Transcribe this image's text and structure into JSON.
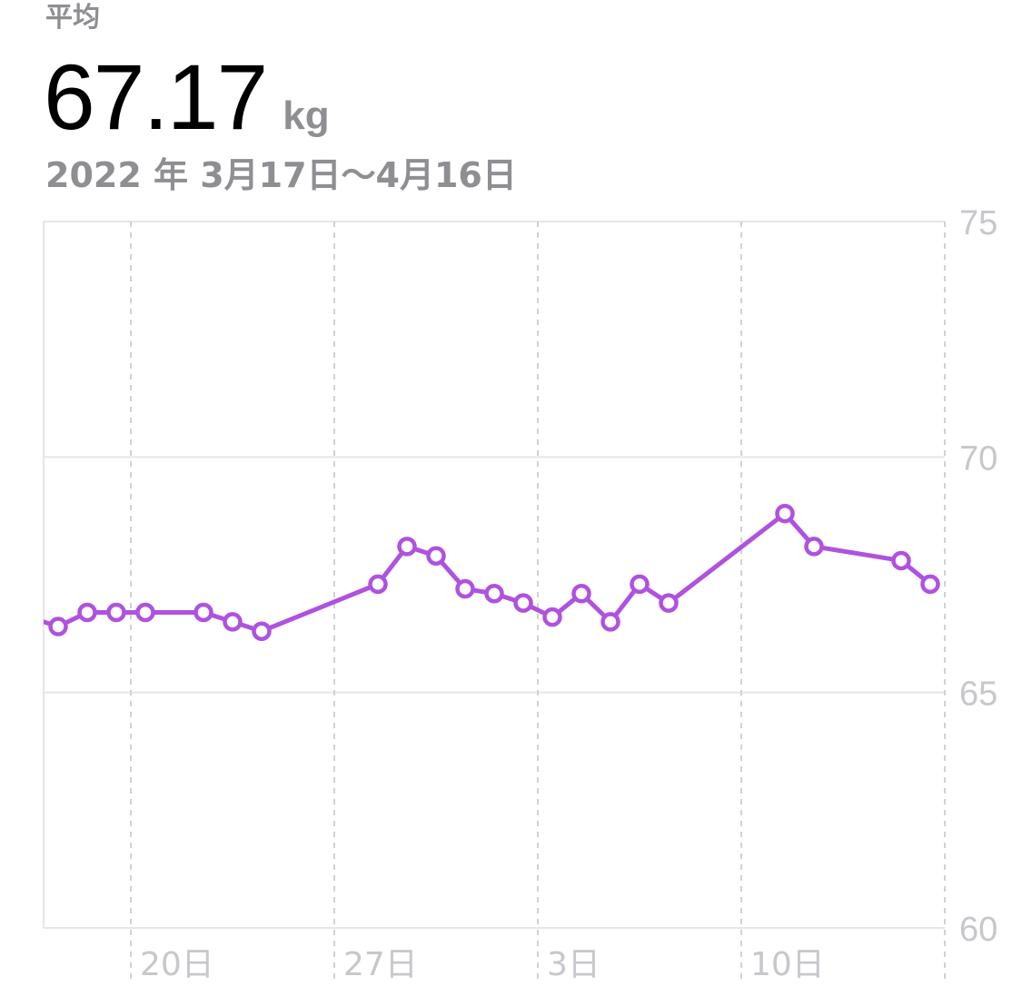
{
  "summary": {
    "label": "平均",
    "value": "67.17",
    "unit": "kg",
    "date_range": "2022 年 3月17日〜4月16日"
  },
  "colors": {
    "series": "#af52de",
    "grid": "#e5e5ea",
    "grid_dashed": "#d1d1d6",
    "axis_text": "#c7c7cc",
    "point_fill": "#ffffff"
  },
  "chart_data": {
    "type": "line",
    "xlabel": "",
    "ylabel": "",
    "x_start": "2022-03-17",
    "x_end": "2022-04-16",
    "ylim": [
      60,
      75
    ],
    "y_ticks": [
      "75",
      "70",
      "65",
      "60"
    ],
    "x_ticks": [
      {
        "date": "2022-03-20",
        "label": "20日"
      },
      {
        "date": "2022-03-27",
        "label": "27日"
      },
      {
        "date": "2022-04-03",
        "label": "3日"
      },
      {
        "date": "2022-04-10",
        "label": "10日"
      }
    ],
    "grid": true,
    "marker": "hollow-circle",
    "offscreen_previous_value": 66.6,
    "series": [
      {
        "points": [
          {
            "date": "2022-03-17",
            "value": 66.4
          },
          {
            "date": "2022-03-18",
            "value": 66.7
          },
          {
            "date": "2022-03-19",
            "value": 66.7
          },
          {
            "date": "2022-03-20",
            "value": 66.7
          },
          {
            "date": "2022-03-22",
            "value": 66.7
          },
          {
            "date": "2022-03-23",
            "value": 66.5
          },
          {
            "date": "2022-03-24",
            "value": 66.3
          },
          {
            "date": "2022-03-28",
            "value": 67.3
          },
          {
            "date": "2022-03-29",
            "value": 68.1
          },
          {
            "date": "2022-03-30",
            "value": 67.9
          },
          {
            "date": "2022-03-31",
            "value": 67.2
          },
          {
            "date": "2022-04-01",
            "value": 67.1
          },
          {
            "date": "2022-04-02",
            "value": 66.9
          },
          {
            "date": "2022-04-03",
            "value": 66.6
          },
          {
            "date": "2022-04-04",
            "value": 67.1
          },
          {
            "date": "2022-04-05",
            "value": 66.5
          },
          {
            "date": "2022-04-06",
            "value": 67.3
          },
          {
            "date": "2022-04-07",
            "value": 66.9
          },
          {
            "date": "2022-04-11",
            "value": 68.8
          },
          {
            "date": "2022-04-12",
            "value": 68.1
          },
          {
            "date": "2022-04-15",
            "value": 67.8
          },
          {
            "date": "2022-04-16",
            "value": 67.3
          }
        ]
      }
    ]
  }
}
